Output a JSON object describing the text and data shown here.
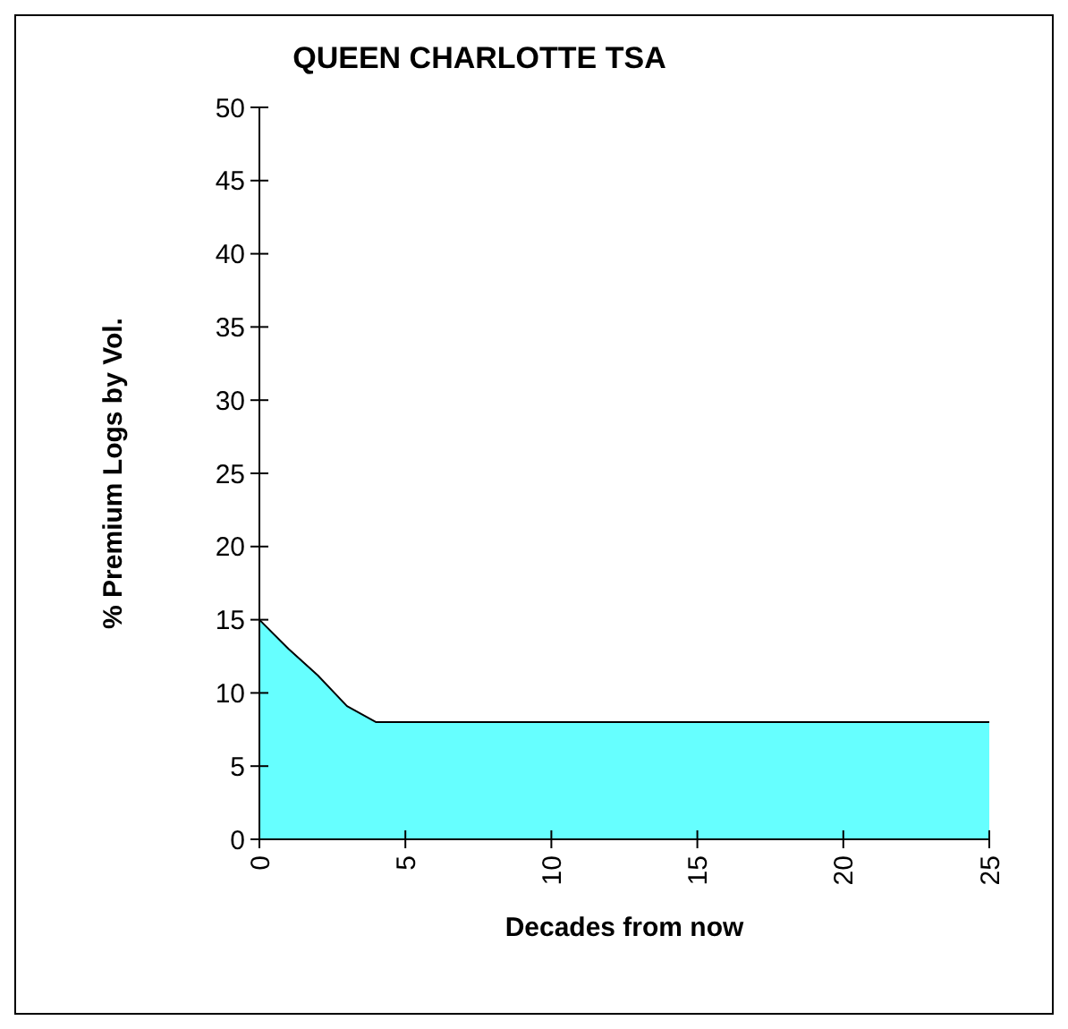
{
  "chart_data": {
    "type": "area",
    "title": "QUEEN CHARLOTTE TSA",
    "xlabel": "Decades from now",
    "ylabel": "% Premium Logs by Vol.",
    "x": [
      0,
      1,
      2,
      3,
      4,
      5,
      10,
      15,
      20,
      25
    ],
    "series": [
      {
        "color": "#66ffff",
        "values": [
          15,
          13,
          11.2,
          9.1,
          8,
          8,
          8,
          8,
          8,
          8
        ]
      }
    ],
    "xlim": [
      0,
      25
    ],
    "xticks": [
      0,
      5,
      10,
      15,
      20,
      25
    ],
    "ylim": [
      0,
      50
    ],
    "yticks": [
      0,
      5,
      10,
      15,
      20,
      25,
      30,
      35,
      40,
      45,
      50
    ],
    "grid": false
  }
}
